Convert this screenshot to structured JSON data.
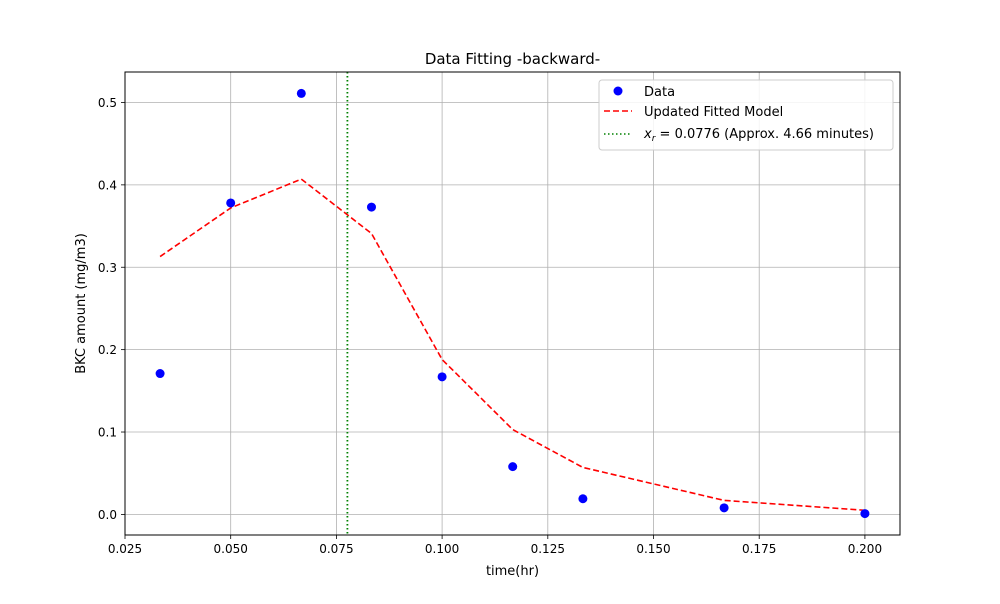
{
  "chart_data": {
    "type": "scatter",
    "title": "Data Fitting -backward-",
    "xlabel": "time(hr)",
    "ylabel": "BKC amount (mg/m3)",
    "xlim": [
      0.025,
      0.2083
    ],
    "ylim": [
      -0.025,
      0.537
    ],
    "x_ticks": [
      0.025,
      0.05,
      0.075,
      0.1,
      0.125,
      0.15,
      0.175,
      0.2
    ],
    "x_tick_labels": [
      "0.025",
      "0.050",
      "0.075",
      "0.100",
      "0.125",
      "0.150",
      "0.175",
      "0.200"
    ],
    "y_ticks": [
      0.0,
      0.1,
      0.2,
      0.3,
      0.4,
      0.5
    ],
    "y_tick_labels": [
      "0.0",
      "0.1",
      "0.2",
      "0.3",
      "0.4",
      "0.5"
    ],
    "grid": true,
    "legend_position": "top-right",
    "series": [
      {
        "name": "Data",
        "kind": "scatter",
        "color": "#0000ff",
        "x": [
          0.0333,
          0.05,
          0.0667,
          0.0833,
          0.1,
          0.1167,
          0.1333,
          0.1667,
          0.2
        ],
        "y": [
          0.171,
          0.378,
          0.511,
          0.373,
          0.167,
          0.058,
          0.019,
          0.008,
          0.001
        ]
      },
      {
        "name": "Updated Fitted Model",
        "kind": "line",
        "line_style": "dashed",
        "color": "#ff0000",
        "x": [
          0.0333,
          0.05,
          0.0667,
          0.0833,
          0.1,
          0.1167,
          0.1333,
          0.1667,
          0.2
        ],
        "y": [
          0.313,
          0.372,
          0.407,
          0.341,
          0.188,
          0.103,
          0.057,
          0.017,
          0.005
        ]
      },
      {
        "name_prefix": "x",
        "name_subscript": "r",
        "name_rest": " = 0.0776 (Approx. 4.66 minutes)",
        "kind": "vline",
        "line_style": "dotted",
        "color": "#008000",
        "x": 0.0776
      }
    ]
  }
}
